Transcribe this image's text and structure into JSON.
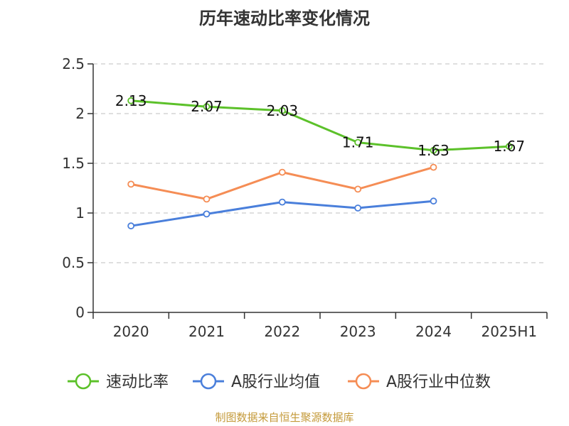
{
  "chart_data": {
    "type": "line",
    "title": "历年速动比率变化情况",
    "categories": [
      "2020",
      "2021",
      "2022",
      "2023",
      "2024",
      "2025H1"
    ],
    "ylim": [
      0,
      2.5
    ],
    "yticks": [
      0,
      0.5,
      1,
      1.5,
      2,
      2.5
    ],
    "ytick_labels": [
      "0",
      "0.5",
      "1",
      "1.5",
      "2",
      "2.5"
    ],
    "grid": true,
    "legend_position": "bottom",
    "series": [
      {
        "name": "速动比率",
        "color": "#5cc12a",
        "values": [
          2.13,
          2.07,
          2.03,
          1.71,
          1.63,
          1.67
        ],
        "labels": [
          "2.13",
          "2.07",
          "2.03",
          "1.71",
          "1.63",
          "1.67"
        ]
      },
      {
        "name": "A股行业均值",
        "color": "#4a7fdb",
        "values": [
          0.87,
          0.99,
          1.11,
          1.05,
          1.12,
          null
        ]
      },
      {
        "name": "A股行业中位数",
        "color": "#f58d55",
        "values": [
          1.29,
          1.14,
          1.41,
          1.24,
          1.46,
          null
        ]
      }
    ]
  },
  "source": "制图数据来自恒生聚源数据库"
}
